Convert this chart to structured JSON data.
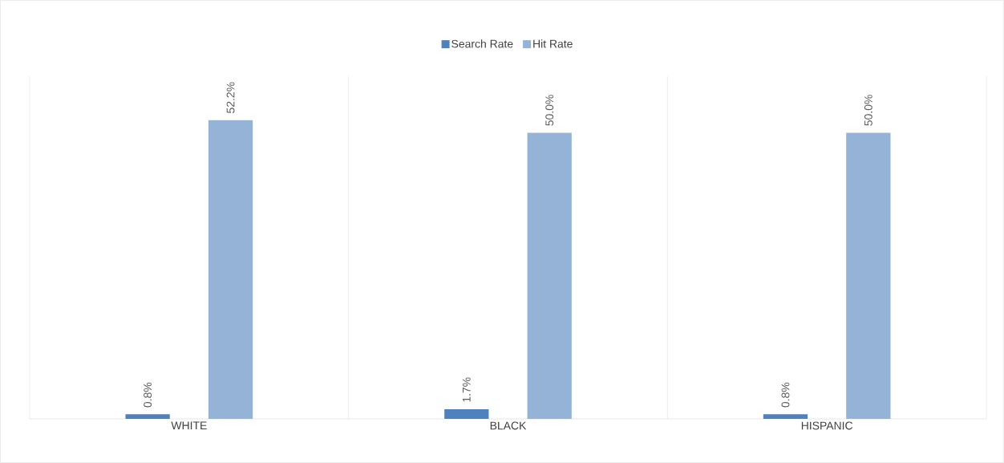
{
  "chart_data": {
    "type": "bar",
    "categories": [
      "WHITE",
      "BLACK",
      "HISPANIC"
    ],
    "series": [
      {
        "name": "Search Rate",
        "color": "#4f81bd",
        "values": [
          0.8,
          1.7,
          0.8
        ],
        "value_labels": [
          "0.8%",
          "1.7%",
          "0.8%"
        ]
      },
      {
        "name": "Hit Rate",
        "color": "#95b3d7",
        "values": [
          52.2,
          50.0,
          50.0
        ],
        "value_labels": [
          "52.2%",
          "50.0%",
          "50.0%"
        ]
      }
    ],
    "legend": "top",
    "grid": "x"
  }
}
